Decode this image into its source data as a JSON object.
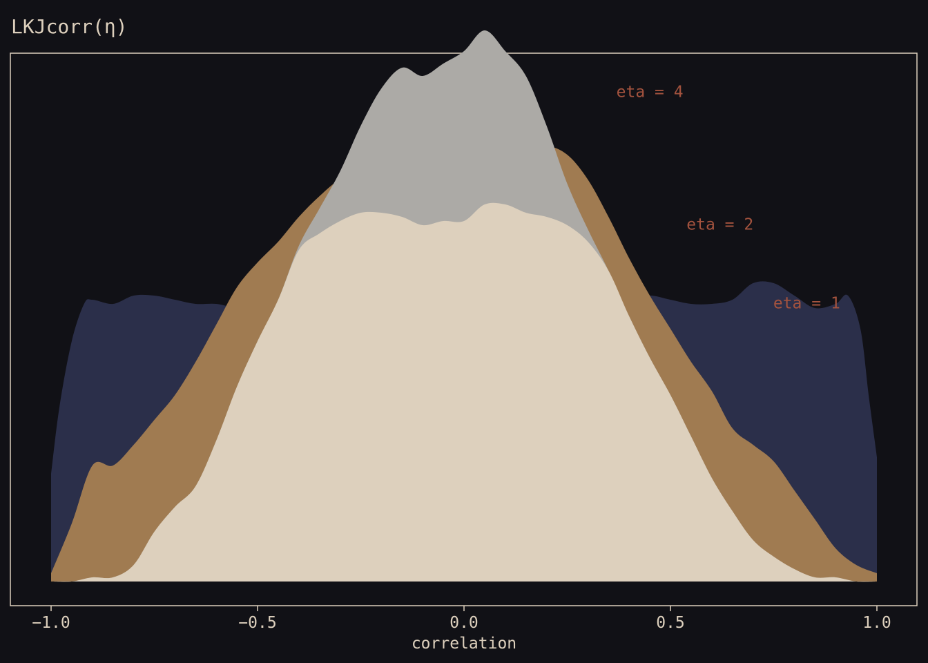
{
  "colors": {
    "background": "#111116",
    "frame": "#ddd0bd",
    "text": "#ddd0bd",
    "annotation": "#a4533e"
  },
  "chart_data": {
    "type": "area",
    "title": "LKJcorr(η)",
    "xlabel": "correlation",
    "ylabel": "",
    "xlim": [
      -1.0,
      1.0
    ],
    "ylim": [
      0,
      1.26
    ],
    "grid": false,
    "legend": "none",
    "x_ticks": [
      -1.0,
      -0.5,
      0.0,
      0.5,
      1.0
    ],
    "x_tick_labels": [
      "−1.0",
      "−0.5",
      "0.0",
      "0.5",
      "1.0"
    ],
    "annotations": [
      {
        "text": "eta = 4",
        "x": 0.45,
        "y": 1.18
      },
      {
        "text": "eta = 2",
        "x": 0.62,
        "y": 0.86
      },
      {
        "text": "eta = 1",
        "x": 0.83,
        "y": 0.67
      }
    ],
    "series": [
      {
        "color": "#2b2f4a",
        "x": [
          -1.0,
          -0.98,
          -0.95,
          -0.92,
          -0.9,
          -0.85,
          -0.8,
          -0.75,
          -0.7,
          -0.65,
          -0.6,
          -0.55,
          -0.5,
          -0.45,
          -0.4,
          -0.35,
          -0.3,
          -0.25,
          -0.2,
          -0.15,
          -0.1,
          -0.05,
          0.0,
          0.05,
          0.1,
          0.15,
          0.2,
          0.25,
          0.3,
          0.35,
          0.4,
          0.45,
          0.5,
          0.55,
          0.6,
          0.65,
          0.7,
          0.75,
          0.8,
          0.85,
          0.9,
          0.93,
          0.96,
          0.98,
          1.0
        ],
        "y": [
          0.26,
          0.42,
          0.58,
          0.67,
          0.68,
          0.67,
          0.69,
          0.69,
          0.68,
          0.67,
          0.67,
          0.66,
          0.66,
          0.66,
          0.69,
          0.69,
          0.69,
          0.69,
          0.68,
          0.68,
          0.67,
          0.66,
          0.65,
          0.64,
          0.65,
          0.66,
          0.67,
          0.68,
          0.69,
          0.68,
          0.68,
          0.69,
          0.68,
          0.67,
          0.67,
          0.68,
          0.72,
          0.72,
          0.69,
          0.66,
          0.67,
          0.69,
          0.61,
          0.45,
          0.3
        ]
      },
      {
        "color": "#a07b51",
        "x": [
          -1.0,
          -0.95,
          -0.9,
          -0.85,
          -0.8,
          -0.75,
          -0.7,
          -0.65,
          -0.6,
          -0.55,
          -0.5,
          -0.45,
          -0.4,
          -0.35,
          -0.3,
          -0.25,
          -0.2,
          -0.15,
          -0.1,
          -0.05,
          0.0,
          0.05,
          0.1,
          0.15,
          0.2,
          0.25,
          0.3,
          0.35,
          0.4,
          0.45,
          0.5,
          0.55,
          0.6,
          0.65,
          0.7,
          0.75,
          0.8,
          0.85,
          0.9,
          0.95,
          1.0
        ],
        "y": [
          0.02,
          0.14,
          0.28,
          0.28,
          0.33,
          0.39,
          0.45,
          0.53,
          0.62,
          0.71,
          0.77,
          0.82,
          0.88,
          0.93,
          0.97,
          0.98,
          1.0,
          1.01,
          0.98,
          0.97,
          0.98,
          1.02,
          1.03,
          1.03,
          1.05,
          1.03,
          0.97,
          0.88,
          0.78,
          0.69,
          0.61,
          0.53,
          0.46,
          0.37,
          0.33,
          0.29,
          0.22,
          0.15,
          0.08,
          0.04,
          0.02
        ]
      },
      {
        "color": "#acaaa6",
        "x": [
          -1.0,
          -0.95,
          -0.9,
          -0.85,
          -0.8,
          -0.75,
          -0.7,
          -0.65,
          -0.6,
          -0.55,
          -0.5,
          -0.45,
          -0.4,
          -0.35,
          -0.3,
          -0.25,
          -0.2,
          -0.15,
          -0.1,
          -0.05,
          0.0,
          0.05,
          0.1,
          0.15,
          0.2,
          0.25,
          0.3,
          0.35,
          0.4,
          0.45,
          0.5,
          0.55,
          0.6,
          0.65,
          0.7,
          0.75,
          0.8,
          0.85,
          0.9,
          0.95,
          1.0
        ],
        "y": [
          0.0,
          0.0,
          0.01,
          0.01,
          0.04,
          0.12,
          0.18,
          0.23,
          0.34,
          0.47,
          0.58,
          0.68,
          0.81,
          0.9,
          0.99,
          1.1,
          1.19,
          1.24,
          1.22,
          1.25,
          1.28,
          1.33,
          1.28,
          1.22,
          1.1,
          0.96,
          0.85,
          0.75,
          0.64,
          0.54,
          0.45,
          0.35,
          0.25,
          0.17,
          0.1,
          0.06,
          0.03,
          0.01,
          0.01,
          0.0,
          0.0
        ]
      },
      {
        "color": "#ddd0bd",
        "x": [
          -1.0,
          -0.95,
          -0.9,
          -0.85,
          -0.8,
          -0.75,
          -0.7,
          -0.65,
          -0.6,
          -0.55,
          -0.5,
          -0.45,
          -0.4,
          -0.35,
          -0.3,
          -0.25,
          -0.2,
          -0.15,
          -0.1,
          -0.05,
          0.0,
          0.05,
          0.1,
          0.15,
          0.2,
          0.25,
          0.3,
          0.35,
          0.4,
          0.45,
          0.5,
          0.55,
          0.6,
          0.65,
          0.7,
          0.75,
          0.8,
          0.85,
          0.9,
          0.95,
          1.0
        ],
        "y": [
          0.0,
          0.0,
          0.01,
          0.01,
          0.04,
          0.12,
          0.18,
          0.23,
          0.34,
          0.47,
          0.58,
          0.68,
          0.8,
          0.84,
          0.87,
          0.89,
          0.89,
          0.88,
          0.86,
          0.87,
          0.87,
          0.91,
          0.91,
          0.89,
          0.88,
          0.86,
          0.82,
          0.75,
          0.64,
          0.54,
          0.45,
          0.35,
          0.25,
          0.17,
          0.1,
          0.06,
          0.03,
          0.01,
          0.01,
          0.0,
          0.0
        ]
      }
    ]
  }
}
